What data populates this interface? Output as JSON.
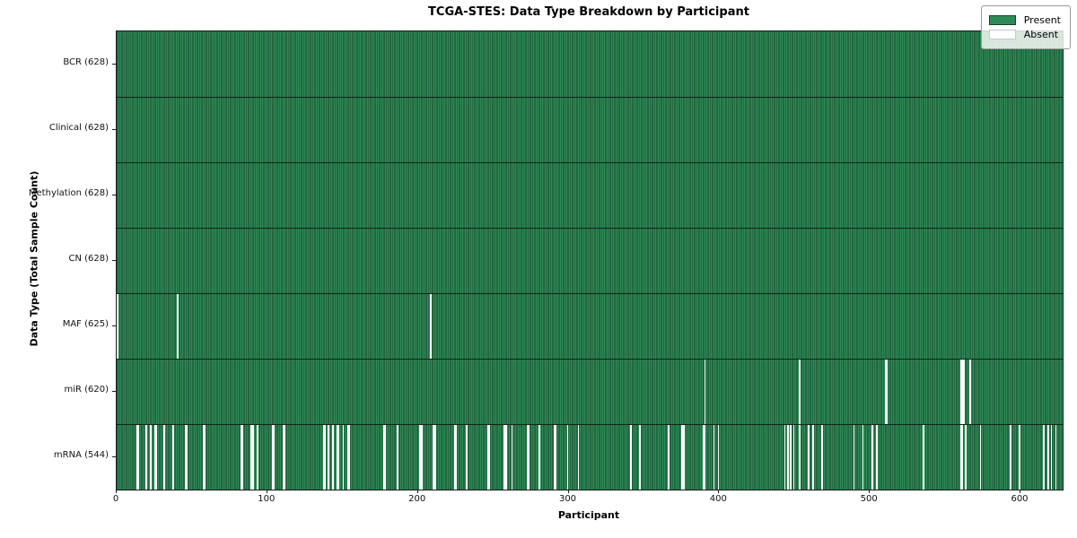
{
  "figure_title": "TCGA-STES: Data Type Breakdown by Participant",
  "chart_data": {
    "type": "heatmap",
    "title": "TCGA-STES: Data Type Breakdown by Participant",
    "xlabel": "Participant",
    "ylabel": "Data Type (Total Sample Count)",
    "xlim": [
      0,
      628
    ],
    "total_participants": 628,
    "x_ticks": [
      0,
      100,
      200,
      300,
      400,
      500,
      600
    ],
    "grid": false,
    "legend": {
      "position": "upper right",
      "entries": [
        {
          "label": "Present",
          "color": "#2e8b57"
        },
        {
          "label": "Absent",
          "color": "#ffffff"
        }
      ]
    },
    "colors": {
      "present": "#2e8b57",
      "present_edge": "#16432a",
      "absent": "#fcfcfc",
      "row_separator": "#0e2417"
    },
    "rows": [
      {
        "label": "BCR (628)",
        "data_type": "BCR",
        "present_count": 628,
        "absent_participants": []
      },
      {
        "label": "Clinical (628)",
        "data_type": "Clinical",
        "present_count": 628,
        "absent_participants": []
      },
      {
        "label": "Methylation (628)",
        "data_type": "Methylation",
        "present_count": 628,
        "absent_participants": []
      },
      {
        "label": "CN (628)",
        "data_type": "CN",
        "present_count": 628,
        "absent_participants": []
      },
      {
        "label": "MAF (625)",
        "data_type": "MAF",
        "present_count": 625,
        "absent_participants": [
          0,
          40,
          208
        ]
      },
      {
        "label": "miR (620)",
        "data_type": "miR",
        "present_count": 620,
        "absent_participants": [
          390,
          453,
          510,
          511,
          560,
          561,
          562,
          566
        ]
      },
      {
        "label": "mRNA (544)",
        "data_type": "mRNA",
        "present_count": 544,
        "absent_participants": [
          13,
          14,
          19,
          22,
          25,
          26,
          31,
          37,
          45,
          46,
          57,
          58,
          82,
          83,
          89,
          90,
          93,
          103,
          104,
          110,
          111,
          137,
          138,
          140,
          143,
          146,
          147,
          150,
          153,
          154,
          177,
          178,
          186,
          201,
          202,
          210,
          211,
          224,
          225,
          232,
          246,
          247,
          257,
          258,
          262,
          272,
          273,
          280,
          290,
          291,
          299,
          306,
          341,
          347,
          366,
          375,
          376,
          389,
          390,
          396,
          399,
          443,
          445,
          447,
          449,
          453,
          459,
          462,
          468,
          489,
          495,
          501,
          504,
          535,
          560,
          561,
          563,
          573,
          593,
          599,
          615,
          618,
          620,
          623
        ]
      }
    ]
  }
}
